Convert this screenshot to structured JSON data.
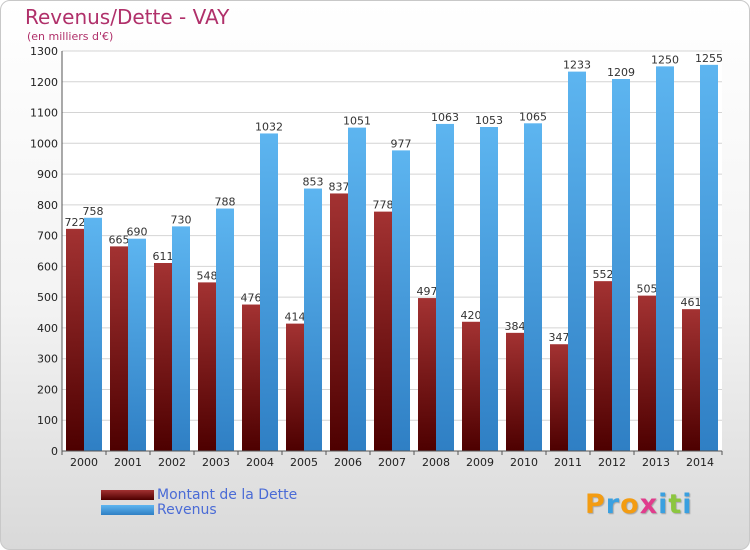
{
  "header": {
    "title": "Revenus/Dette - VAY",
    "subtitle": "(en milliers d'€)"
  },
  "chart_data": {
    "type": "bar",
    "title": "Revenus/Dette - VAY",
    "ylabel": "(en milliers d'€)",
    "xlabel": "",
    "ylim": [
      0,
      1300
    ],
    "yticks": [
      0,
      100,
      200,
      300,
      400,
      500,
      600,
      700,
      800,
      900,
      1000,
      1100,
      1200,
      1300
    ],
    "grid": true,
    "legend_placement": "bottom-left",
    "categories": [
      "2000",
      "2001",
      "2002",
      "2003",
      "2004",
      "2005",
      "2006",
      "2007",
      "2008",
      "2009",
      "2010",
      "2011",
      "2012",
      "2013",
      "2014"
    ],
    "series": [
      {
        "name": "Montant de la Dette",
        "color": "#8b1a1a",
        "values": [
          722,
          665,
          611,
          548,
          476,
          414,
          837,
          778,
          497,
          420,
          384,
          347,
          552,
          505,
          461
        ]
      },
      {
        "name": "Revenus",
        "color": "#4aa3e6",
        "values": [
          758,
          690,
          730,
          788,
          1032,
          853,
          1051,
          977,
          1063,
          1053,
          1065,
          1233,
          1209,
          1250,
          1255
        ]
      }
    ]
  },
  "legend": {
    "items": [
      {
        "label": "Montant de la Dette",
        "color": "#8b1a1a"
      },
      {
        "label": "Revenus",
        "color": "#4aa3e6"
      }
    ]
  },
  "logo": {
    "letters": [
      "P",
      "r",
      "o",
      "x",
      "i",
      "t",
      "i"
    ],
    "colors": [
      "#f39c12",
      "#3aa0e0",
      "#f39c12",
      "#e03c8c",
      "#3aa0e0",
      "#8cc63f",
      "#3aa0e0"
    ]
  }
}
